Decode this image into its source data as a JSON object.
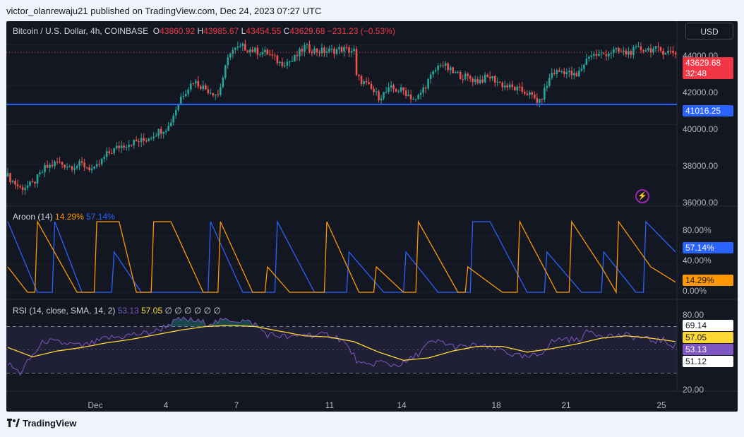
{
  "header": {
    "published_text": "victor_olanrewaju21 published on TradingView.com, Dec 24, 2023 07:27 UTC"
  },
  "legend": {
    "symbol": "Bitcoin / U.S. Dollar, 4h, COINBASE",
    "o_label": "O",
    "o_value": "43860.92",
    "h_label": "H",
    "h_value": "43985.67",
    "l_label": "L",
    "l_value": "43454.55",
    "c_label": "C",
    "c_value": "43629.68",
    "change": "−231.23 (−0.53%)"
  },
  "currency_button": "USD",
  "price_axis": {
    "ticks": [
      "44000.00",
      "42000.00",
      "40000.00",
      "38000.00",
      "36000.00"
    ],
    "last_price": "43629.68",
    "countdown": "32:48",
    "line_label": "41016.25"
  },
  "aroon": {
    "title": "Aroon (14)",
    "down_value": "14.29%",
    "up_value": "57.14%",
    "ticks": [
      "80.00%",
      "40.00%",
      "0.00%"
    ],
    "up_badge": "57.14%",
    "down_badge": "14.29%"
  },
  "rsi": {
    "title": "RSI (14, close, SMA, 14, 2)",
    "value": "53.13",
    "ma_value": "57.05",
    "empty_marks": "∅ ∅ ∅ ∅ ∅ ∅",
    "ticks": [
      "80.00",
      "20.00"
    ],
    "badges": [
      "69.14",
      "57.05",
      "53.13",
      "51.12"
    ]
  },
  "time_axis": [
    "Dec",
    "4",
    "7",
    "11",
    "14",
    "18",
    "21",
    "25"
  ],
  "brand": "TradingView",
  "colors": {
    "up": "#26a69a",
    "down": "#ef5350",
    "hline": "#2962ff",
    "aroon_up": "#2962ff",
    "aroon_down": "#ff9800",
    "rsi": "#7e57c2",
    "rsi_ma": "#fdd835",
    "background": "#131722"
  },
  "chart_data": [
    {
      "type": "candlestick",
      "title": "Bitcoin / U.S. Dollar, 4h, COINBASE",
      "ylim": [
        35900,
        45200
      ],
      "x_ticks": [
        "Dec",
        "4",
        "7",
        "11",
        "14",
        "18",
        "21",
        "25"
      ],
      "horizontal_line": 41016.25,
      "close_path": [
        [
          0,
          37400
        ],
        [
          5,
          36800
        ],
        [
          10,
          37000
        ],
        [
          15,
          37800
        ],
        [
          20,
          38100
        ],
        [
          25,
          37900
        ],
        [
          30,
          38000
        ],
        [
          35,
          37700
        ],
        [
          40,
          38500
        ],
        [
          45,
          38900
        ],
        [
          50,
          39100
        ],
        [
          55,
          39200
        ],
        [
          60,
          39600
        ],
        [
          65,
          39900
        ],
        [
          70,
          41400
        ],
        [
          75,
          42200
        ],
        [
          80,
          41800
        ],
        [
          85,
          41500
        ],
        [
          90,
          43700
        ],
        [
          95,
          43900
        ],
        [
          100,
          43700
        ],
        [
          105,
          43600
        ],
        [
          110,
          43100
        ],
        [
          115,
          43200
        ],
        [
          120,
          43900
        ],
        [
          125,
          43700
        ],
        [
          130,
          43700
        ],
        [
          135,
          43800
        ],
        [
          140,
          43700
        ],
        [
          141,
          42400
        ],
        [
          145,
          42000
        ],
        [
          150,
          41400
        ],
        [
          155,
          41800
        ],
        [
          160,
          41700
        ],
        [
          165,
          41200
        ],
        [
          170,
          42200
        ],
        [
          175,
          43100
        ],
        [
          180,
          42600
        ],
        [
          185,
          42400
        ],
        [
          190,
          42200
        ],
        [
          195,
          42400
        ],
        [
          200,
          42000
        ],
        [
          205,
          41800
        ],
        [
          210,
          41600
        ],
        [
          215,
          41100
        ],
        [
          220,
          42600
        ],
        [
          225,
          42700
        ],
        [
          230,
          42400
        ],
        [
          235,
          43500
        ],
        [
          240,
          43500
        ],
        [
          245,
          43700
        ],
        [
          250,
          43600
        ],
        [
          255,
          43800
        ],
        [
          260,
          43800
        ],
        [
          265,
          43700
        ],
        [
          270,
          43630
        ]
      ]
    },
    {
      "type": "line",
      "title": "Aroon (14)",
      "ylim": [
        0,
        100
      ],
      "series": [
        {
          "name": "Aroon Up",
          "values": [
            [
              0,
              100
            ],
            [
              12,
              0
            ],
            [
              18,
              0
            ],
            [
              19,
              100
            ],
            [
              30,
              0
            ],
            [
              42,
              0
            ],
            [
              43,
              57
            ],
            [
              54,
              0
            ],
            [
              70,
              0
            ],
            [
              81,
              0
            ],
            [
              82,
              100
            ],
            [
              95,
              0
            ],
            [
              108,
              0
            ],
            [
              109,
              100
            ],
            [
              124,
              0
            ],
            [
              137,
              0
            ],
            [
              138,
              57
            ],
            [
              152,
              0
            ],
            [
              160,
              0
            ],
            [
              161,
              57
            ],
            [
              174,
              0
            ],
            [
              187,
              0
            ],
            [
              188,
              100
            ],
            [
              195,
              100
            ],
            [
              210,
              0
            ],
            [
              217,
              0
            ],
            [
              218,
              57
            ],
            [
              232,
              0
            ],
            [
              240,
              0
            ],
            [
              241,
              57
            ],
            [
              254,
              0
            ],
            [
              257,
              0
            ],
            [
              258,
              100
            ],
            [
              270,
              57
            ]
          ]
        },
        {
          "name": "Aroon Down",
          "values": [
            [
              0,
              36
            ],
            [
              8,
              0
            ],
            [
              11,
              0
            ],
            [
              12,
              100
            ],
            [
              28,
              0
            ],
            [
              35,
              0
            ],
            [
              36,
              100
            ],
            [
              45,
              100
            ],
            [
              52,
              0
            ],
            [
              58,
              0
            ],
            [
              59,
              100
            ],
            [
              66,
              100
            ],
            [
              79,
              0
            ],
            [
              85,
              0
            ],
            [
              86,
              100
            ],
            [
              99,
              0
            ],
            [
              104,
              0
            ],
            [
              105,
              36
            ],
            [
              114,
              0
            ],
            [
              128,
              0
            ],
            [
              129,
              100
            ],
            [
              142,
              0
            ],
            [
              148,
              0
            ],
            [
              149,
              36
            ],
            [
              160,
              0
            ],
            [
              165,
              0
            ],
            [
              166,
              100
            ],
            [
              182,
              0
            ],
            [
              185,
              0
            ],
            [
              186,
              36
            ],
            [
              200,
              0
            ],
            [
              206,
              0
            ],
            [
              207,
              100
            ],
            [
              222,
              0
            ],
            [
              227,
              0
            ],
            [
              228,
              100
            ],
            [
              240,
              36
            ],
            [
              246,
              0
            ],
            [
              247,
              100
            ],
            [
              260,
              36
            ],
            [
              270,
              14.29
            ]
          ]
        }
      ]
    },
    {
      "type": "line",
      "title": "RSI (14, close, SMA, 14, 2)",
      "ylim": [
        20,
        80
      ],
      "bands": [
        30,
        50,
        70
      ],
      "series": [
        {
          "name": "RSI",
          "values": [
            [
              0,
              38
            ],
            [
              5,
              30
            ],
            [
              10,
              45
            ],
            [
              15,
              58
            ],
            [
              20,
              56
            ],
            [
              25,
              55
            ],
            [
              30,
              53
            ],
            [
              35,
              56
            ],
            [
              40,
              60
            ],
            [
              45,
              61
            ],
            [
              50,
              63
            ],
            [
              55,
              64
            ],
            [
              60,
              66
            ],
            [
              65,
              72
            ],
            [
              70,
              76
            ],
            [
              75,
              75
            ],
            [
              80,
              73
            ],
            [
              85,
              74
            ],
            [
              90,
              76
            ],
            [
              95,
              75
            ],
            [
              100,
              72
            ],
            [
              105,
              63
            ],
            [
              110,
              62
            ],
            [
              115,
              60
            ],
            [
              120,
              64
            ],
            [
              125,
              62
            ],
            [
              130,
              63
            ],
            [
              135,
              59
            ],
            [
              140,
              45
            ],
            [
              142,
              38
            ],
            [
              145,
              36
            ],
            [
              150,
              40
            ],
            [
              155,
              37
            ],
            [
              160,
              38
            ],
            [
              165,
              45
            ],
            [
              170,
              55
            ],
            [
              175,
              57
            ],
            [
              180,
              53
            ],
            [
              185,
              52
            ],
            [
              190,
              54
            ],
            [
              195,
              51
            ],
            [
              200,
              50
            ],
            [
              205,
              45
            ],
            [
              210,
              43
            ],
            [
              215,
              46
            ],
            [
              220,
              57
            ],
            [
              225,
              60
            ],
            [
              230,
              58
            ],
            [
              235,
              66
            ],
            [
              240,
              63
            ],
            [
              245,
              62
            ],
            [
              250,
              62
            ],
            [
              255,
              61
            ],
            [
              260,
              58
            ],
            [
              265,
              58
            ],
            [
              270,
              53.13
            ]
          ]
        },
        {
          "name": "RSI-based MA",
          "values": [
            [
              0,
              52
            ],
            [
              10,
              44
            ],
            [
              20,
              49
            ],
            [
              30,
              52
            ],
            [
              40,
              56
            ],
            [
              50,
              59
            ],
            [
              60,
              63
            ],
            [
              70,
              67
            ],
            [
              80,
              70
            ],
            [
              90,
              71
            ],
            [
              100,
              70
            ],
            [
              110,
              66
            ],
            [
              120,
              62
            ],
            [
              130,
              61
            ],
            [
              140,
              57
            ],
            [
              150,
              48
            ],
            [
              160,
              41
            ],
            [
              170,
              43
            ],
            [
              180,
              49
            ],
            [
              190,
              53
            ],
            [
              200,
              53
            ],
            [
              210,
              48
            ],
            [
              220,
              51
            ],
            [
              230,
              55
            ],
            [
              240,
              60
            ],
            [
              250,
              62
            ],
            [
              260,
              60
            ],
            [
              270,
              57.05
            ]
          ]
        }
      ]
    }
  ]
}
